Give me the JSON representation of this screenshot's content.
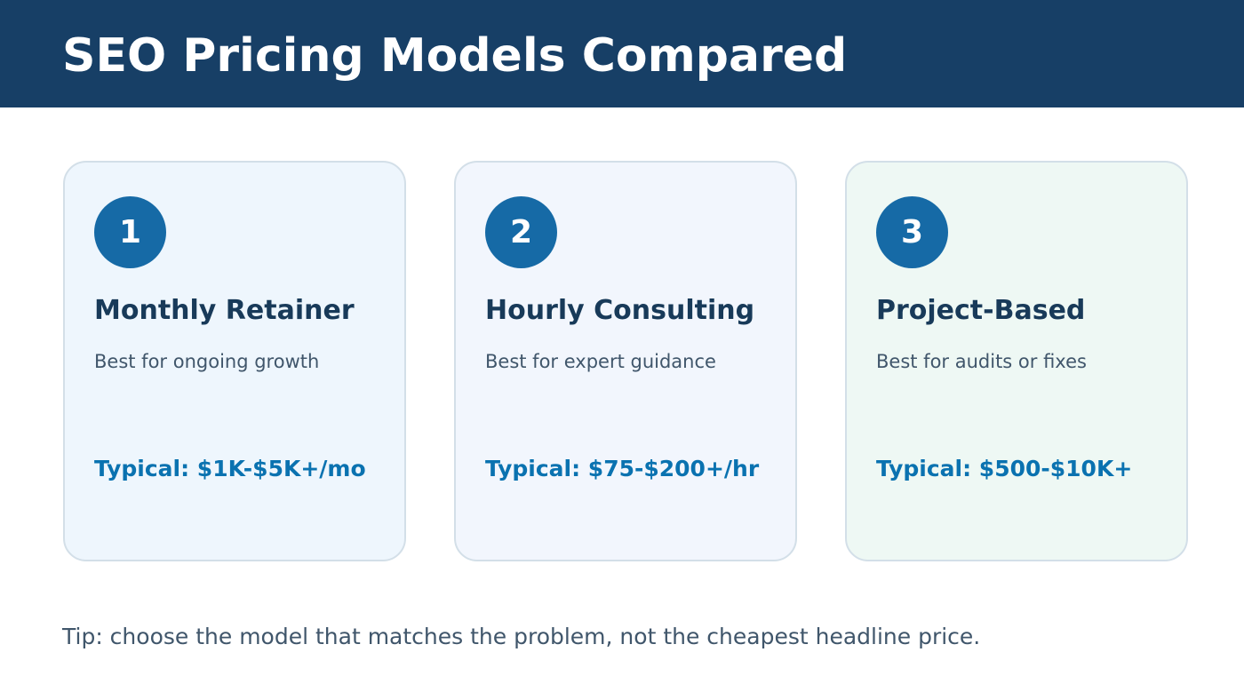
{
  "header": {
    "title": "SEO Pricing Models Compared"
  },
  "cards": [
    {
      "number": "1",
      "title": "Monthly Retainer",
      "description": "Best for ongoing growth",
      "price": "Typical: $1K-$5K+/mo"
    },
    {
      "number": "2",
      "title": "Hourly Consulting",
      "description": "Best for expert guidance",
      "price": "Typical: $75-$200+/hr"
    },
    {
      "number": "3",
      "title": "Project-Based",
      "description": "Best for audits or fixes",
      "price": "Typical: $500-$10K+"
    }
  ],
  "footer": {
    "tip": "Tip: choose the model that matches the problem, not the cheapest headline price."
  },
  "colors": {
    "header_background": "#173f66",
    "badge": "#166aa6",
    "price_text": "#0a72b0",
    "card_1_background": "#eef6fd",
    "card_2_background": "#f2f6fd",
    "card_3_background": "#eef8f4"
  }
}
